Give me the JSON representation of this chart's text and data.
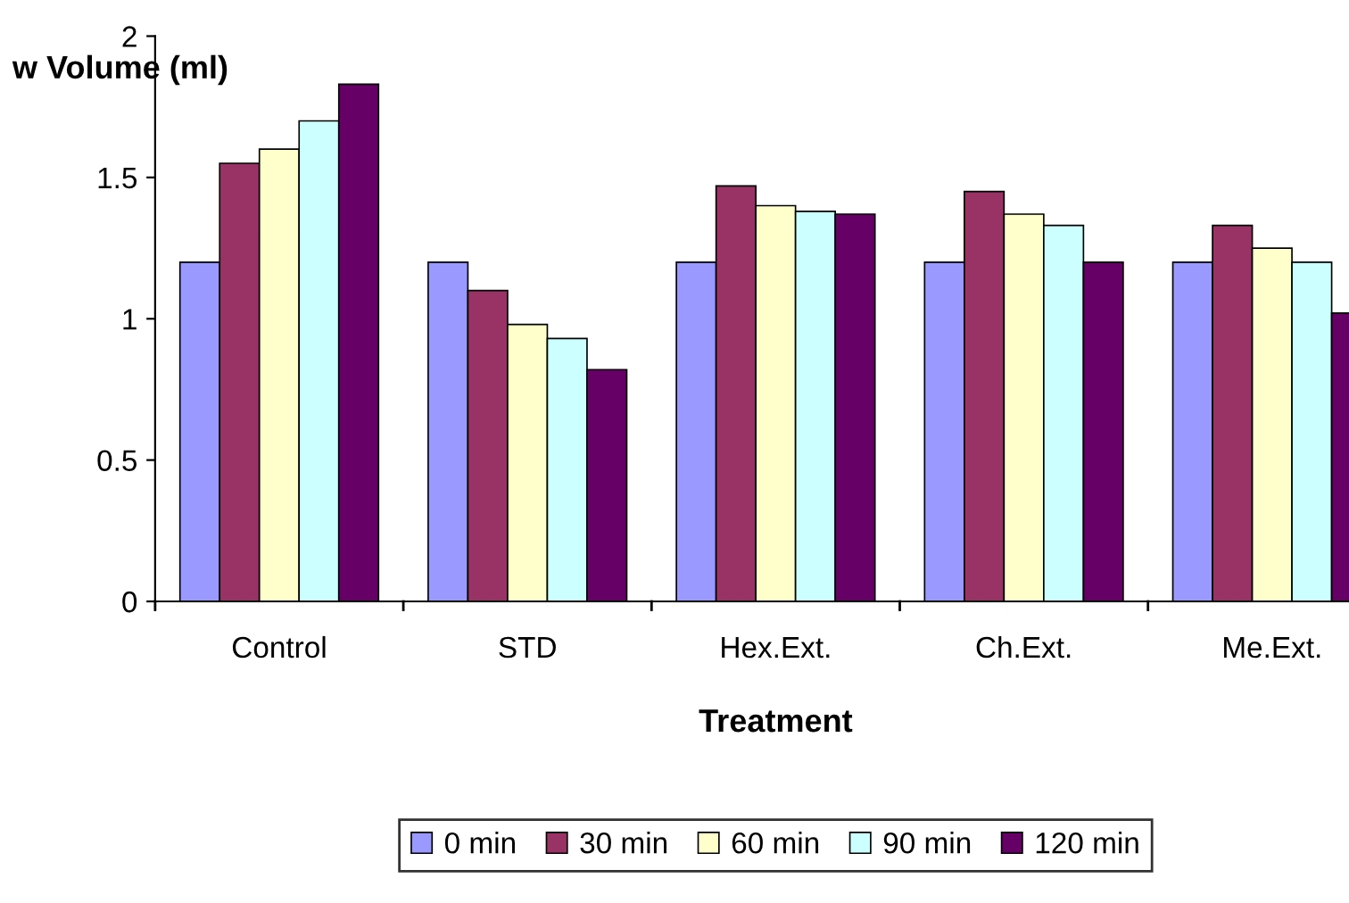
{
  "chart_data": {
    "type": "bar",
    "ylabel": "w Volume (ml)",
    "xlabel": "Treatment",
    "categories": [
      "Control",
      "STD",
      "Hex.Ext.",
      "Ch.Ext.",
      "Me.Ext."
    ],
    "series": [
      {
        "name": "0 min",
        "color": "#9999ff",
        "values": [
          1.2,
          1.2,
          1.2,
          1.2,
          1.2
        ]
      },
      {
        "name": "30 min",
        "color": "#993366",
        "values": [
          1.55,
          1.1,
          1.47,
          1.45,
          1.33
        ]
      },
      {
        "name": "60 min",
        "color": "#ffffcc",
        "values": [
          1.6,
          0.98,
          1.4,
          1.37,
          1.25
        ]
      },
      {
        "name": "90 min",
        "color": "#ccffff",
        "values": [
          1.7,
          0.93,
          1.38,
          1.33,
          1.2
        ]
      },
      {
        "name": "120 min",
        "color": "#660066",
        "values": [
          1.83,
          0.82,
          1.37,
          1.2,
          1.02
        ]
      }
    ],
    "ylim": [
      0,
      2
    ],
    "yticks": [
      0,
      0.5,
      1,
      1.5,
      2
    ],
    "grid": false,
    "legend": "bottom"
  }
}
